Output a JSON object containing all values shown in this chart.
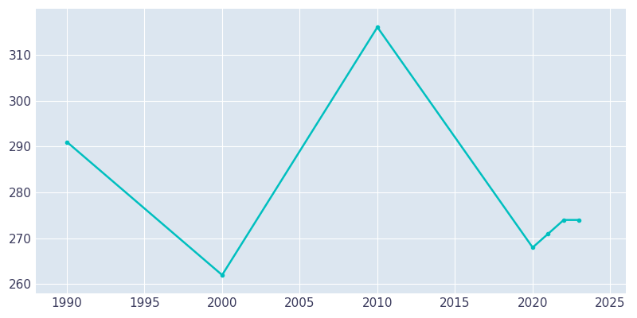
{
  "years": [
    1990,
    2000,
    2010,
    2020,
    2021,
    2022,
    2023
  ],
  "population": [
    291,
    262,
    316,
    268,
    271,
    274,
    274
  ],
  "line_color": "#00BFBF",
  "marker": "o",
  "marker_size": 3,
  "line_width": 1.8,
  "xlim": [
    1988,
    2026
  ],
  "ylim": [
    258,
    320
  ],
  "xticks": [
    1990,
    1995,
    2000,
    2005,
    2010,
    2015,
    2020,
    2025
  ],
  "yticks": [
    260,
    270,
    280,
    290,
    300,
    310
  ],
  "plot_bg_color": "#dce6f0",
  "fig_bg_color": "#ffffff",
  "grid_color": "#ffffff",
  "tick_label_color": "#3a3a5c",
  "tick_label_size": 11
}
